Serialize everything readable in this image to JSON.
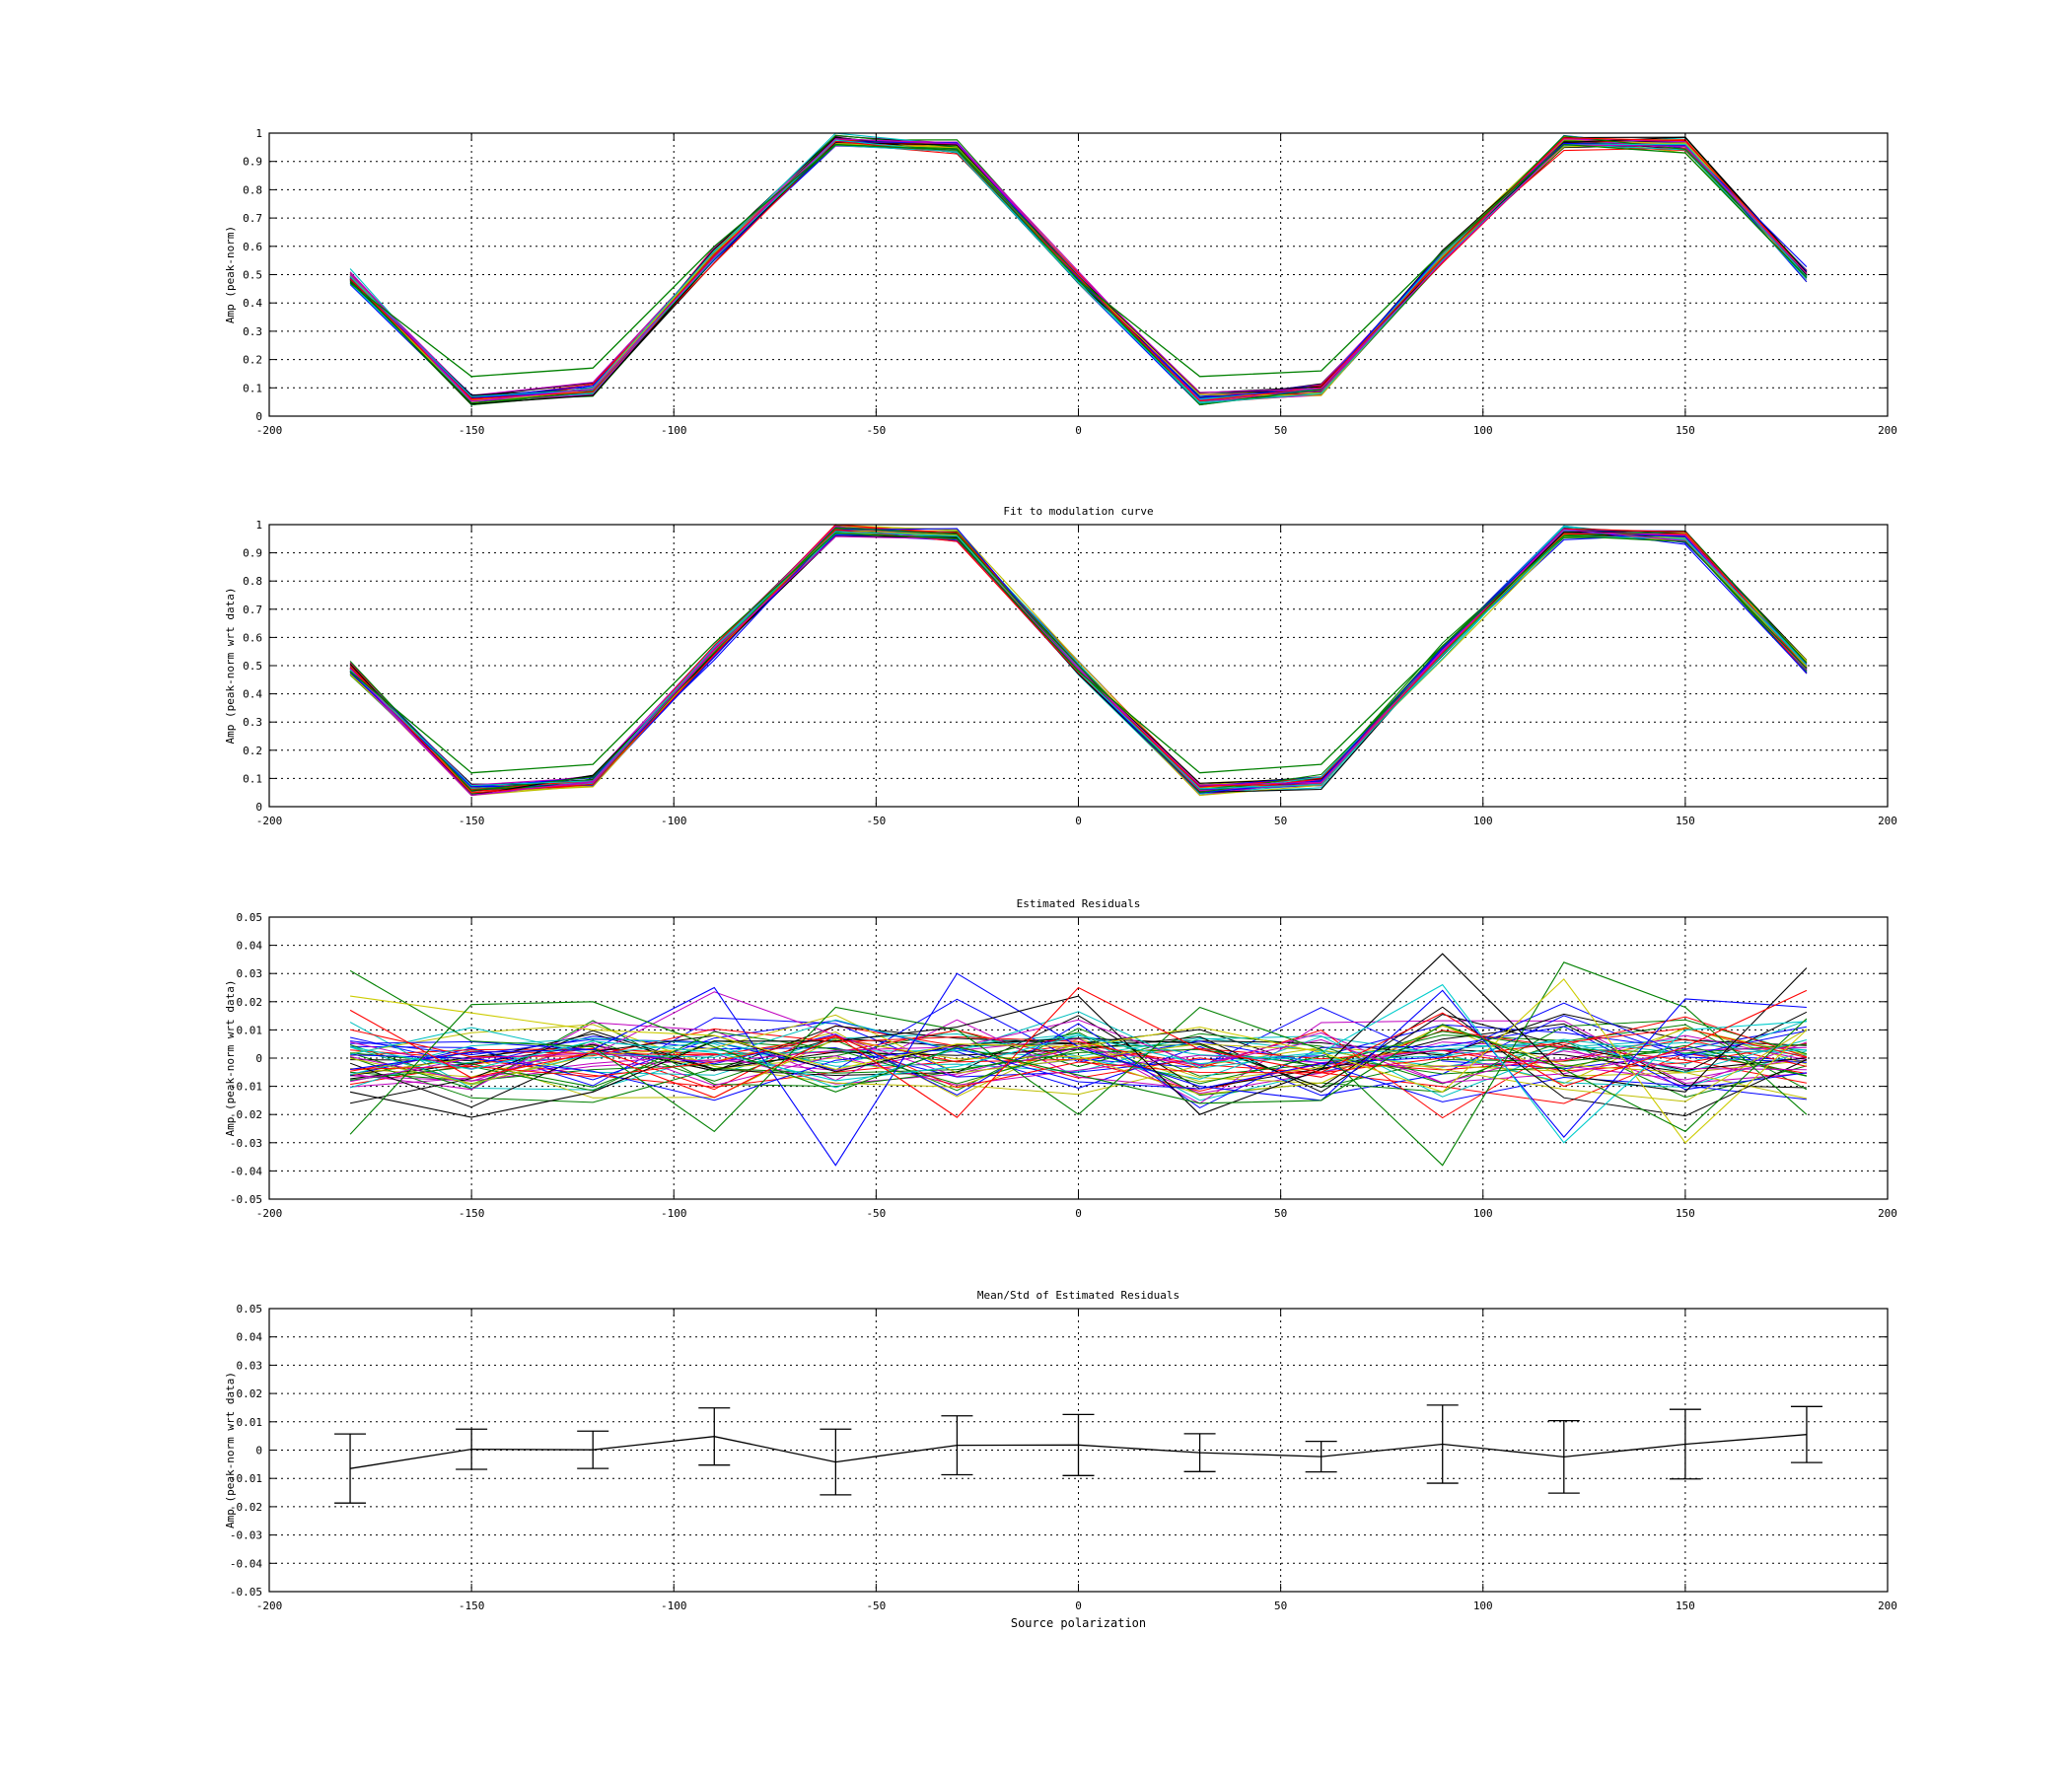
{
  "chart_data": [
    {
      "type": "line",
      "title": "",
      "xlabel": "",
      "ylabel": "Amp (peak-norm)",
      "xlim": [
        -200,
        200
      ],
      "ylim": [
        0,
        1
      ],
      "x_ticks": [
        "-200",
        "-150",
        "-100",
        "-50",
        "0",
        "50",
        "100",
        "150",
        "200"
      ],
      "y_ticks": [
        "0",
        "0.1",
        "0.2",
        "0.3",
        "0.4",
        "0.5",
        "0.6",
        "0.7",
        "0.8",
        "0.9",
        "1"
      ],
      "grid": true,
      "legend": "none",
      "x": [
        -180,
        -150,
        -120,
        -90,
        -60,
        -30,
        0,
        30,
        60,
        90,
        120,
        150,
        180
      ],
      "base": [
        0.49,
        0.06,
        0.09,
        0.57,
        0.97,
        0.95,
        0.49,
        0.06,
        0.09,
        0.56,
        0.97,
        0.96,
        0.5
      ],
      "series_count": 40,
      "highlight": {
        "values": [
          0.47,
          0.14,
          0.17,
          0.6,
          0.96,
          0.94,
          0.48,
          0.14,
          0.16,
          0.58,
          0.96,
          0.93,
          0.49
        ],
        "color": "#008000"
      }
    },
    {
      "type": "line",
      "title": "Fit to modulation curve",
      "xlabel": "",
      "ylabel": "Amp (peak-norm wrt data)",
      "xlim": [
        -200,
        200
      ],
      "ylim": [
        0,
        1
      ],
      "x_ticks": [
        "-200",
        "-150",
        "-100",
        "-50",
        "0",
        "50",
        "100",
        "150",
        "200"
      ],
      "y_ticks": [
        "0",
        "0.1",
        "0.2",
        "0.3",
        "0.4",
        "0.5",
        "0.6",
        "0.7",
        "0.8",
        "0.9",
        "1"
      ],
      "grid": true,
      "legend": "none",
      "x": [
        -180,
        -150,
        -120,
        -90,
        -60,
        -30,
        0,
        30,
        60,
        90,
        120,
        150,
        180
      ],
      "base": [
        0.49,
        0.06,
        0.09,
        0.55,
        0.98,
        0.96,
        0.49,
        0.06,
        0.09,
        0.55,
        0.97,
        0.96,
        0.49
      ],
      "series_count": 40,
      "highlight": {
        "values": [
          0.48,
          0.12,
          0.15,
          0.58,
          0.97,
          0.95,
          0.48,
          0.12,
          0.15,
          0.57,
          0.96,
          0.94,
          0.49
        ],
        "color": "#008000"
      }
    },
    {
      "type": "line",
      "title": "Estimated Residuals",
      "xlabel": "",
      "ylabel": "Amp (peak-norm wrt data)",
      "xlim": [
        -200,
        200
      ],
      "ylim": [
        -0.05,
        0.05
      ],
      "x_ticks": [
        "-200",
        "-150",
        "-100",
        "-50",
        "0",
        "50",
        "100",
        "150",
        "200"
      ],
      "y_ticks": [
        "-0.05",
        "-0.04",
        "-0.03",
        "-0.02",
        "-0.01",
        "0",
        "0.01",
        "0.02",
        "0.03",
        "0.04",
        "0.05"
      ],
      "grid": true,
      "legend": "none",
      "x": [
        -180,
        -150,
        -120,
        -90,
        -60,
        -30,
        0,
        30,
        60,
        90,
        120,
        150,
        180
      ],
      "series_count": 40,
      "extreme_series": [
        {
          "color": "#008000",
          "values": [
            0.031,
            0.006,
            0.004,
            -0.026,
            0.018,
            0.01,
            -0.02,
            0.018,
            0.003,
            -0.038,
            0.034,
            0.018,
            -0.02
          ]
        },
        {
          "color": "#0000ff",
          "values": [
            -0.004,
            0.002,
            0.003,
            0.025,
            -0.038,
            0.03,
            0.004,
            -0.01,
            -0.015,
            0.024,
            -0.028,
            0.021,
            0.018
          ]
        },
        {
          "color": "#000000",
          "values": [
            -0.012,
            -0.021,
            -0.012,
            0.006,
            0.006,
            0.011,
            0.022,
            -0.02,
            -0.004,
            0.037,
            -0.006,
            -0.012,
            0.032
          ]
        },
        {
          "color": "#cccc00",
          "values": [
            0.022,
            0.016,
            0.01,
            0.008,
            -0.004,
            0.005,
            0.004,
            0.011,
            0.002,
            -0.012,
            0.028,
            -0.03,
            0.01
          ]
        },
        {
          "color": "#00cccc",
          "values": [
            0.004,
            -0.004,
            0.006,
            0.002,
            -0.008,
            -0.003,
            0.008,
            -0.002,
            0.002,
            0.026,
            -0.03,
            0.01,
            0.013
          ]
        },
        {
          "color": "#ff0000",
          "values": [
            0.017,
            -0.007,
            0.002,
            -0.014,
            0.008,
            -0.021,
            0.025,
            0.003,
            -0.005,
            0.016,
            -0.01,
            0.004,
            0.024
          ]
        },
        {
          "color": "#008000",
          "values": [
            -0.027,
            0.019,
            0.02,
            0.004,
            -0.012,
            0.004,
            -0.006,
            -0.016,
            -0.015,
            0.012,
            -0.004,
            -0.026,
            0.014
          ]
        }
      ]
    },
    {
      "type": "line",
      "title": "Mean/Std of Estimated Residuals",
      "xlabel": "Source polarization",
      "ylabel": "Amp (peak-norm wrt data)",
      "xlim": [
        -200,
        200
      ],
      "ylim": [
        -0.05,
        0.05
      ],
      "x_ticks": [
        "-200",
        "-150",
        "-100",
        "-50",
        "0",
        "50",
        "100",
        "150",
        "200"
      ],
      "y_ticks": [
        "-0.05",
        "-0.04",
        "-0.03",
        "-0.02",
        "-0.01",
        "0",
        "0.01",
        "0.02",
        "0.03",
        "0.04",
        "0.05"
      ],
      "grid": true,
      "legend": "none",
      "x": [
        -180,
        -150,
        -120,
        -90,
        -60,
        -30,
        0,
        30,
        60,
        90,
        120,
        150,
        180
      ],
      "mean": [
        -0.0065,
        0.0003,
        0.0001,
        0.0048,
        -0.0042,
        0.0017,
        0.0018,
        -0.0009,
        -0.0023,
        0.0021,
        -0.0024,
        0.0021,
        0.0055
      ],
      "std": [
        0.0122,
        0.0071,
        0.0066,
        0.0101,
        0.0116,
        0.0104,
        0.0108,
        0.0067,
        0.0054,
        0.0138,
        0.0128,
        0.0123,
        0.0099
      ],
      "color": "#000000"
    }
  ]
}
